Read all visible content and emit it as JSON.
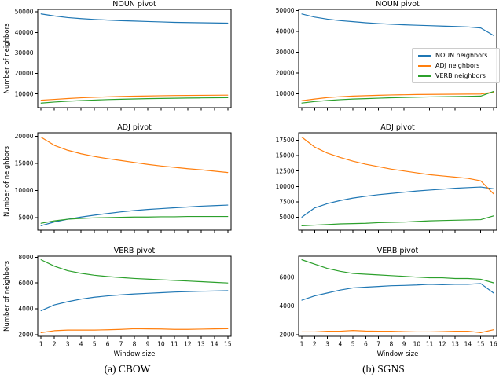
{
  "figure": {
    "captions": {
      "left": "(a) CBOW",
      "right": "(b) SGNS"
    },
    "axis": {
      "ylabel": "Number of neighbors",
      "xlabel": "Window size"
    },
    "legend": {
      "position": "center-right of top-right plot",
      "entries": [
        {
          "label": "NOUN neighbors",
          "color": "#1f77b4"
        },
        {
          "label": "ADJ neighbors",
          "color": "#ff7f0e"
        },
        {
          "label": "VERB neighbors",
          "color": "#2ca02c"
        }
      ]
    },
    "colors": {
      "noun": "#1f77b4",
      "adj": "#ff7f0e",
      "verb": "#2ca02c",
      "spine": "#000000",
      "text": "#000000"
    }
  },
  "chart_data": [
    {
      "type": "line",
      "title": "NOUN pivot",
      "column": "CBOW",
      "row": "NOUN",
      "ylabel": "Number of neighbors",
      "xlabel": "",
      "grid": false,
      "legend": false,
      "show_xtick_labels": false,
      "x": [
        1,
        2,
        3,
        4,
        5,
        6,
        7,
        8,
        9,
        10,
        11,
        12,
        13,
        14,
        15
      ],
      "xlim": [
        0.75,
        15.25
      ],
      "ylim": [
        3400,
        51200
      ],
      "yticks": [
        10000,
        20000,
        30000,
        40000,
        50000
      ],
      "series": [
        {
          "name": "NOUN neighbors",
          "color": "#1f77b4",
          "values": [
            49000,
            48000,
            47200,
            46700,
            46300,
            46000,
            45700,
            45500,
            45300,
            45100,
            44900,
            44800,
            44700,
            44600,
            44500
          ]
        },
        {
          "name": "ADJ neighbors",
          "color": "#ff7f0e",
          "values": [
            7000,
            7400,
            7800,
            8150,
            8400,
            8600,
            8800,
            8950,
            9050,
            9150,
            9250,
            9300,
            9350,
            9400,
            9450
          ]
        },
        {
          "name": "VERB neighbors",
          "color": "#2ca02c",
          "values": [
            5600,
            6100,
            6500,
            6800,
            7050,
            7300,
            7450,
            7600,
            7750,
            7850,
            7950,
            8050,
            8100,
            8150,
            8200
          ]
        }
      ]
    },
    {
      "type": "line",
      "title": "NOUN pivot",
      "column": "SGNS",
      "row": "NOUN",
      "ylabel": "",
      "xlabel": "",
      "grid": false,
      "legend": true,
      "show_xtick_labels": false,
      "x": [
        1,
        2,
        3,
        4,
        5,
        6,
        7,
        8,
        9,
        10,
        11,
        12,
        13,
        14,
        15,
        16
      ],
      "xlim": [
        0.75,
        16.25
      ],
      "ylim": [
        3400,
        50500
      ],
      "yticks": [
        10000,
        20000,
        30000,
        40000,
        50000
      ],
      "series": [
        {
          "name": "NOUN neighbors",
          "color": "#1f77b4",
          "values": [
            48300,
            46800,
            45800,
            45100,
            44600,
            44100,
            43700,
            43400,
            43100,
            42900,
            42700,
            42500,
            42300,
            42100,
            41600,
            38000
          ]
        },
        {
          "name": "ADJ neighbors",
          "color": "#ff7f0e",
          "values": [
            6700,
            7500,
            8200,
            8600,
            8900,
            9100,
            9300,
            9450,
            9550,
            9650,
            9700,
            9750,
            9800,
            9850,
            9900,
            10800
          ]
        },
        {
          "name": "VERB neighbors",
          "color": "#2ca02c",
          "values": [
            5600,
            6300,
            6800,
            7200,
            7500,
            7700,
            7900,
            8100,
            8250,
            8400,
            8500,
            8600,
            8700,
            8800,
            8900,
            11100
          ]
        }
      ]
    },
    {
      "type": "line",
      "title": "ADJ pivot",
      "column": "CBOW",
      "row": "ADJ",
      "ylabel": "Number of neighbors",
      "xlabel": "",
      "grid": false,
      "legend": false,
      "show_xtick_labels": false,
      "x": [
        1,
        2,
        3,
        4,
        5,
        6,
        7,
        8,
        9,
        10,
        11,
        12,
        13,
        14,
        15
      ],
      "xlim": [
        0.75,
        15.25
      ],
      "ylim": [
        2680,
        20620
      ],
      "yticks": [
        5000,
        10000,
        15000,
        20000
      ],
      "series": [
        {
          "name": "NOUN neighbors",
          "color": "#1f77b4",
          "values": [
            3500,
            4200,
            4700,
            5100,
            5450,
            5750,
            6050,
            6300,
            6500,
            6650,
            6800,
            6950,
            7100,
            7200,
            7300
          ]
        },
        {
          "name": "ADJ neighbors",
          "color": "#ff7f0e",
          "values": [
            19800,
            18300,
            17400,
            16750,
            16250,
            15850,
            15500,
            15150,
            14800,
            14500,
            14250,
            14000,
            13800,
            13550,
            13300
          ]
        },
        {
          "name": "VERB neighbors",
          "color": "#2ca02c",
          "values": [
            3950,
            4400,
            4700,
            4850,
            4950,
            5000,
            5050,
            5100,
            5100,
            5150,
            5150,
            5200,
            5200,
            5200,
            5200
          ]
        }
      ]
    },
    {
      "type": "line",
      "title": "ADJ pivot",
      "column": "SGNS",
      "row": "ADJ",
      "ylabel": "",
      "xlabel": "",
      "grid": false,
      "legend": false,
      "show_xtick_labels": false,
      "x": [
        1,
        2,
        3,
        4,
        5,
        6,
        7,
        8,
        9,
        10,
        11,
        12,
        13,
        14,
        15,
        16
      ],
      "xlim": [
        0.75,
        16.25
      ],
      "ylim": [
        2880,
        18720
      ],
      "yticks": [
        5000,
        7500,
        10000,
        12500,
        15000,
        17500
      ],
      "series": [
        {
          "name": "NOUN neighbors",
          "color": "#1f77b4",
          "values": [
            5000,
            6500,
            7200,
            7700,
            8100,
            8400,
            8650,
            8850,
            9050,
            9250,
            9400,
            9550,
            9700,
            9800,
            9900,
            9600
          ]
        },
        {
          "name": "ADJ neighbors",
          "color": "#ff7f0e",
          "values": [
            18000,
            16400,
            15400,
            14700,
            14100,
            13600,
            13200,
            12800,
            12500,
            12200,
            11900,
            11700,
            11500,
            11300,
            10900,
            8800
          ]
        },
        {
          "name": "VERB neighbors",
          "color": "#2ca02c",
          "values": [
            3600,
            3700,
            3800,
            3900,
            3950,
            4000,
            4100,
            4150,
            4200,
            4300,
            4400,
            4450,
            4500,
            4550,
            4600,
            5200
          ]
        }
      ]
    },
    {
      "type": "line",
      "title": "VERB pivot",
      "column": "CBOW",
      "row": "VERB",
      "ylabel": "Number of neighbors",
      "xlabel": "Window size",
      "grid": false,
      "legend": false,
      "show_xtick_labels": true,
      "x": [
        1,
        2,
        3,
        4,
        5,
        6,
        7,
        8,
        9,
        10,
        11,
        12,
        13,
        14,
        15
      ],
      "xlim": [
        0.75,
        15.25
      ],
      "ylim": [
        1868,
        8082
      ],
      "yticks": [
        2000,
        4000,
        6000,
        8000
      ],
      "series": [
        {
          "name": "NOUN neighbors",
          "color": "#1f77b4",
          "values": [
            3850,
            4300,
            4550,
            4750,
            4900,
            5000,
            5080,
            5150,
            5200,
            5250,
            5300,
            5330,
            5360,
            5380,
            5400
          ]
        },
        {
          "name": "ADJ neighbors",
          "color": "#ff7f0e",
          "values": [
            2150,
            2300,
            2350,
            2350,
            2350,
            2370,
            2400,
            2450,
            2440,
            2430,
            2400,
            2400,
            2420,
            2440,
            2450
          ]
        },
        {
          "name": "VERB neighbors",
          "color": "#2ca02c",
          "values": [
            7800,
            7300,
            6950,
            6750,
            6600,
            6500,
            6420,
            6350,
            6300,
            6250,
            6200,
            6150,
            6100,
            6050,
            6000
          ]
        }
      ]
    },
    {
      "type": "line",
      "title": "VERB pivot",
      "column": "SGNS",
      "row": "VERB",
      "ylabel": "",
      "xlabel": "Window size",
      "grid": false,
      "legend": false,
      "show_xtick_labels": true,
      "x": [
        1,
        2,
        3,
        4,
        5,
        6,
        7,
        8,
        9,
        10,
        11,
        12,
        13,
        14,
        15,
        16
      ],
      "xlim": [
        0.75,
        16.25
      ],
      "ylim": [
        1898,
        7452
      ],
      "yticks": [
        2000,
        4000,
        6000
      ],
      "series": [
        {
          "name": "NOUN neighbors",
          "color": "#1f77b4",
          "values": [
            4400,
            4700,
            4900,
            5100,
            5250,
            5300,
            5350,
            5400,
            5420,
            5450,
            5500,
            5470,
            5500,
            5500,
            5550,
            4900
          ]
        },
        {
          "name": "ADJ neighbors",
          "color": "#ff7f0e",
          "values": [
            2200,
            2200,
            2250,
            2250,
            2300,
            2260,
            2250,
            2250,
            2220,
            2200,
            2200,
            2220,
            2250,
            2250,
            2150,
            2350
          ]
        },
        {
          "name": "VERB neighbors",
          "color": "#2ca02c",
          "values": [
            7200,
            6900,
            6600,
            6400,
            6250,
            6200,
            6150,
            6100,
            6050,
            6000,
            5950,
            5950,
            5900,
            5900,
            5850,
            5600
          ]
        }
      ]
    }
  ]
}
